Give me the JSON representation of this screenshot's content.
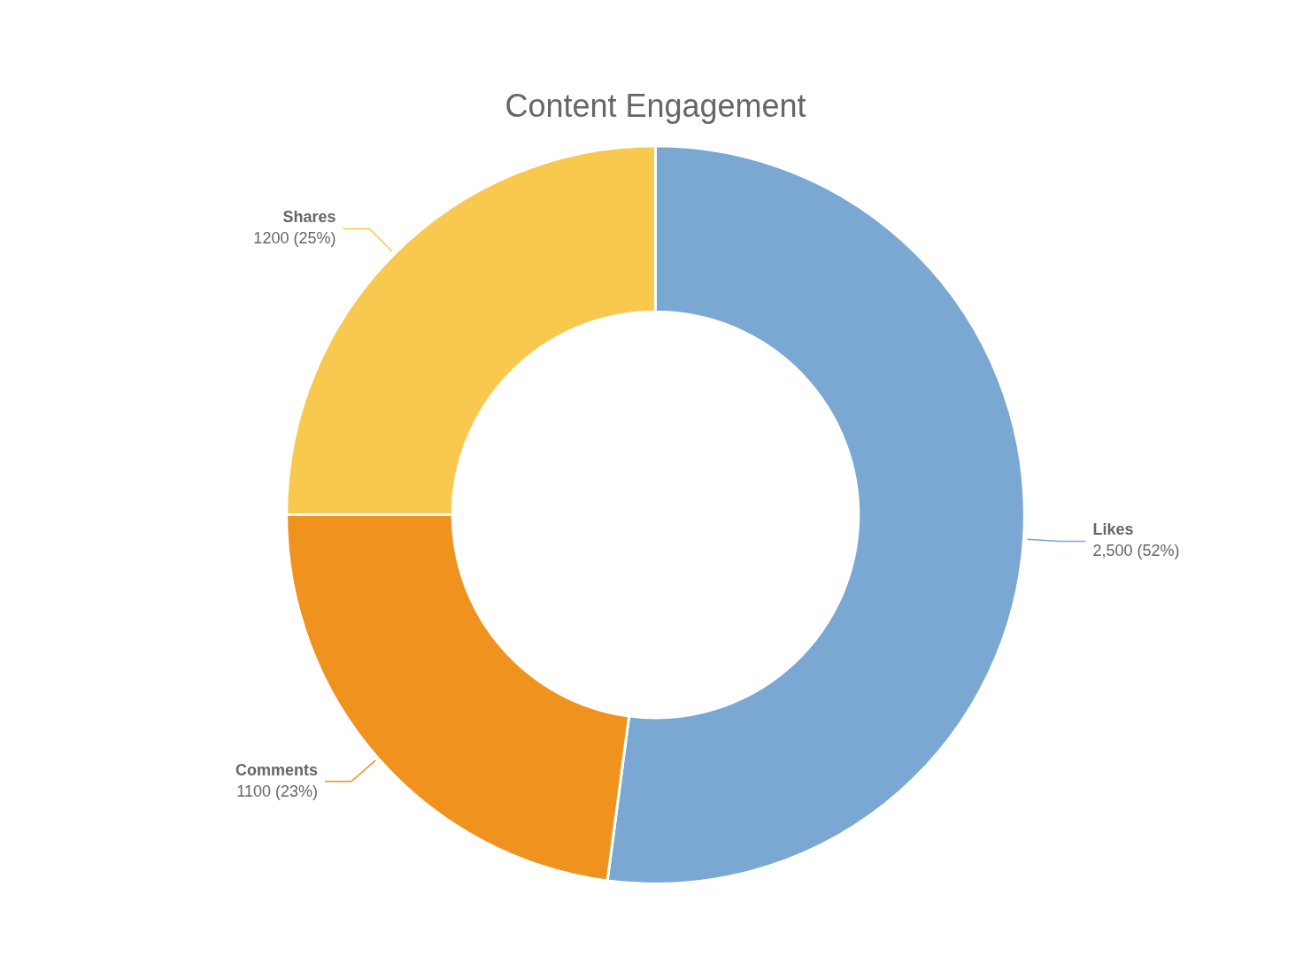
{
  "chart_data": {
    "type": "doughnut",
    "title": "Content Engagement",
    "categories": [
      "Likes",
      "Comments",
      "Shares"
    ],
    "values": [
      2500,
      1100,
      1200
    ],
    "value_labels": [
      "2,500 (52%)",
      "1100 (23%)",
      "1200 (25%)"
    ],
    "colors": [
      "#7aa8d2",
      "#f0921e",
      "#f8c94e"
    ],
    "data_labels": true
  }
}
